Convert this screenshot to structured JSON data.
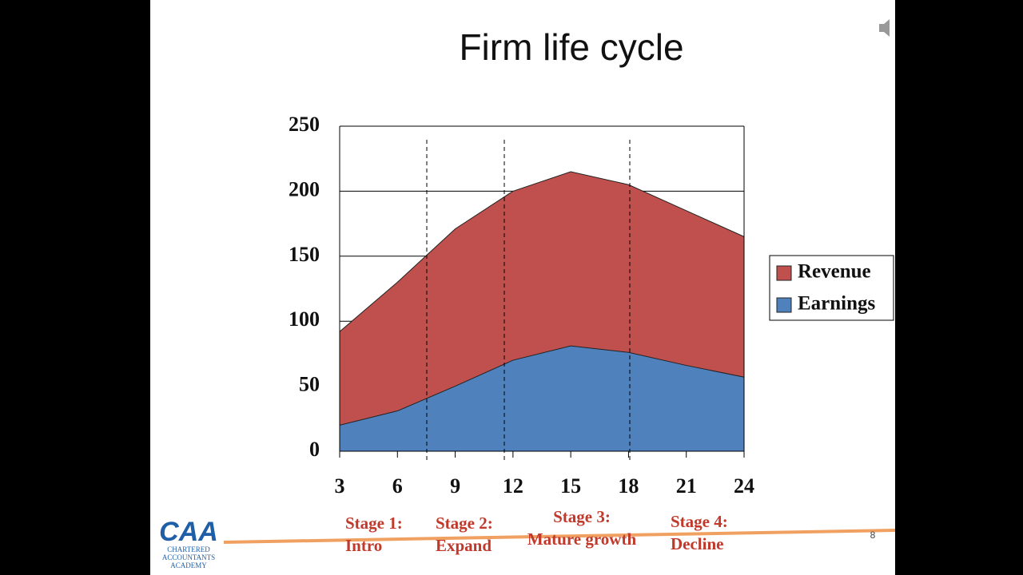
{
  "chart_data": {
    "type": "area",
    "title": "Firm life cycle",
    "x": [
      3,
      6,
      9,
      12,
      15,
      18,
      21,
      24
    ],
    "xlim": [
      3,
      24
    ],
    "xticks": [
      3,
      6,
      9,
      12,
      15,
      18,
      21,
      24
    ],
    "ylim": [
      0,
      250
    ],
    "yticks": [
      0,
      50,
      100,
      150,
      200,
      250
    ],
    "grid": true,
    "legend": "right",
    "series": [
      {
        "name": "Revenue",
        "color": "#c0504d",
        "values": [
          92,
          130,
          171,
          200,
          215,
          205,
          185,
          165
        ]
      },
      {
        "name": "Earnings",
        "color": "#4f81bd",
        "values": [
          20,
          31,
          50,
          70,
          81,
          76,
          66,
          57
        ]
      }
    ],
    "stages": [
      [
        "Stage 1:",
        "Intro"
      ],
      [
        "Stage 2:",
        "Expand"
      ],
      [
        "Stage 3:",
        "Mature growth"
      ],
      [
        "Stage 4:",
        "Decline"
      ]
    ]
  },
  "slide": {
    "logo": "CAA",
    "logo_lines": [
      "CHARTERED",
      "ACCOUNTANTS",
      "ACADEMY"
    ],
    "page_number": "8"
  }
}
